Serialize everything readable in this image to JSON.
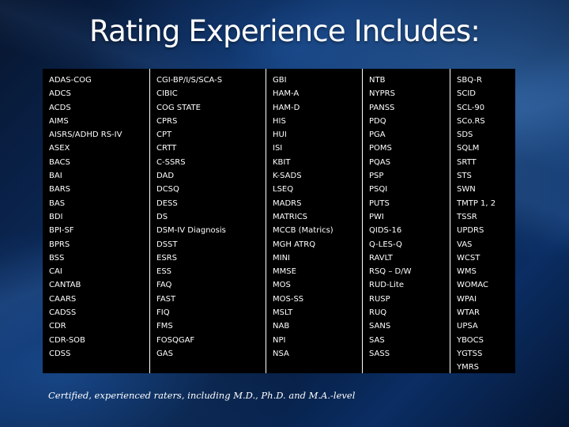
{
  "title": "Rating Experience Includes:",
  "columns": [
    [
      "ADAS-COG",
      "ADCS",
      "ACDS",
      "AIMS",
      "AISRS/ADHD RS-IV",
      "ASEX",
      "BACS",
      "BAI",
      "BARS",
      "BAS",
      "BDI",
      "BPI-SF",
      "BPRS",
      "BSS",
      "CAI",
      "CANTAB",
      "CAARS",
      "CADSS",
      "CDR",
      "CDR-SOB",
      "CDSS"
    ],
    [
      "CGI-BP/I/S/SCA-S",
      "CIBIC",
      "COG STATE",
      "CPRS",
      "CPT",
      "CRTT",
      "C-SSRS",
      "DAD",
      "DCSQ",
      "DESS",
      "DS",
      "DSM-IV Diagnosis",
      "DSST",
      "ESRS",
      "ESS",
      "FAQ",
      "FAST",
      "FIQ",
      "FMS",
      "FOSQGAF",
      "GAS"
    ],
    [
      "GBI",
      "HAM-A",
      "HAM-D",
      "HIS",
      "HUI",
      "ISI",
      "KBIT",
      "K-SADS",
      "LSEQ",
      "MADRS",
      "MATRICS",
      "MCCB (Matrics)",
      "MGH ATRQ",
      "MINI",
      "MMSE",
      "MOS",
      "MOS-SS",
      "MSLT",
      "NAB",
      "NPI",
      "NSA"
    ],
    [
      "NTB",
      "NYPRS",
      "PANSS",
      "PDQ",
      "PGA",
      "POMS",
      "PQAS",
      "PSP",
      "PSQI",
      "PUTS",
      "PWI",
      "QIDS-16",
      "Q-LES-Q",
      "RAVLT",
      "RSQ – D/W",
      "RUD-Lite",
      "RUSP",
      "RUQ",
      "SANS",
      "SAS",
      "SASS"
    ],
    [
      "SBQ-R",
      "SCID",
      "SCL-90",
      "SCo.RS",
      "SDS",
      "SQLM",
      "SRTT",
      "STS",
      "SWN",
      "TMTP 1, 2",
      "TSSR",
      "UPDRS",
      "VAS",
      "WCST",
      "WMS",
      "WOMAC",
      "WPAI",
      "WTAR",
      "UPSA",
      "YBOCS",
      "YGTSS",
      "YMRS"
    ]
  ],
  "footnote": "Certified, experienced raters, including M.D., Ph.D. and M.A.-level"
}
